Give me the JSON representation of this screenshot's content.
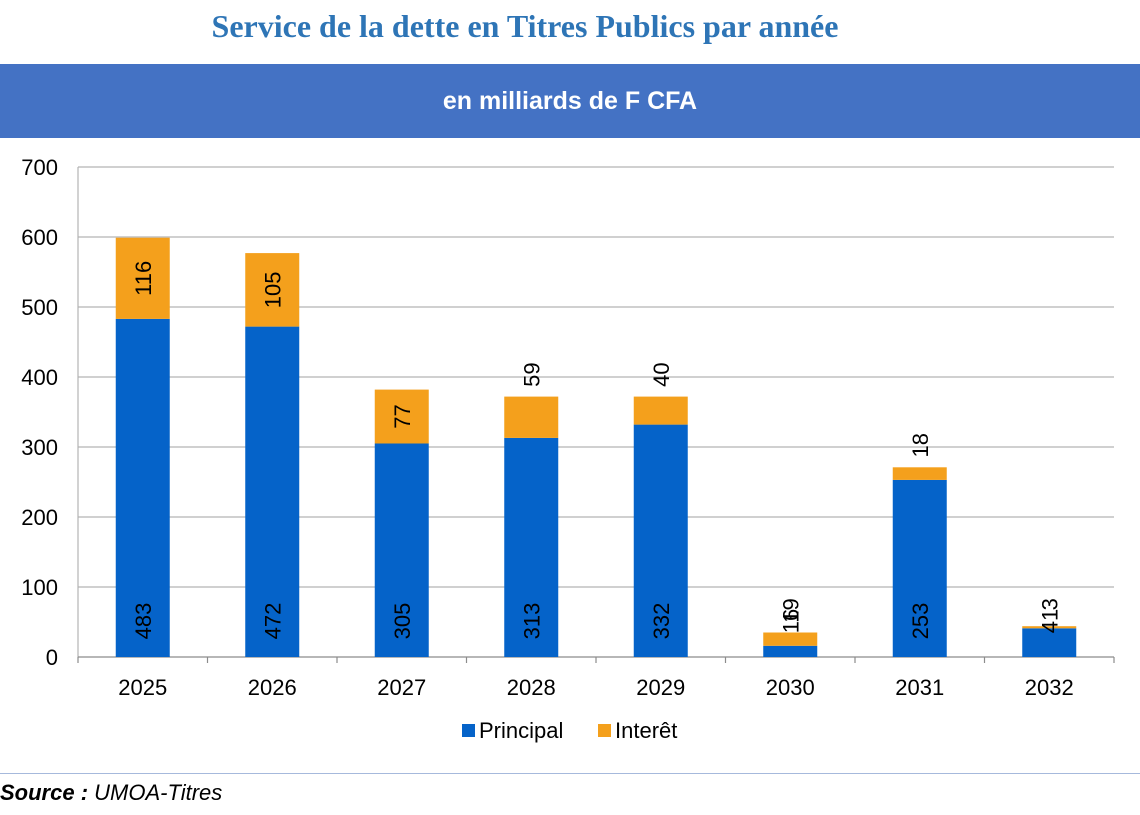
{
  "title": "Service de la dette en Titres Publics par année",
  "banner": "en milliards de F CFA",
  "source": {
    "label": "Source :",
    "value": "UMOA-Titres"
  },
  "colors": {
    "principal": "#0563c9",
    "interet": "#f4a01c",
    "grid": "#b3b3b3",
    "banner": "#4472c4",
    "title": "#2e75b6"
  },
  "chart_data": {
    "type": "bar",
    "stacked": true,
    "categories": [
      "2025",
      "2026",
      "2027",
      "2028",
      "2029",
      "2030",
      "2031",
      "2032"
    ],
    "series": [
      {
        "name": "Principal",
        "values": [
          483,
          472,
          305,
          313,
          332,
          16,
          253,
          41
        ],
        "labels": [
          "483",
          "472",
          "305",
          "313",
          "332",
          "16",
          "253",
          "41"
        ]
      },
      {
        "name": "Interêt",
        "values": [
          116,
          105,
          77,
          59,
          40,
          19,
          18,
          3
        ],
        "labels": [
          "116",
          "105",
          "77",
          "59",
          "40",
          "19",
          "18",
          "3"
        ]
      }
    ],
    "ylim": [
      0,
      700
    ],
    "yticks": [
      0,
      100,
      200,
      300,
      400,
      500,
      600,
      700
    ],
    "grid": true,
    "legend": "bottom"
  }
}
